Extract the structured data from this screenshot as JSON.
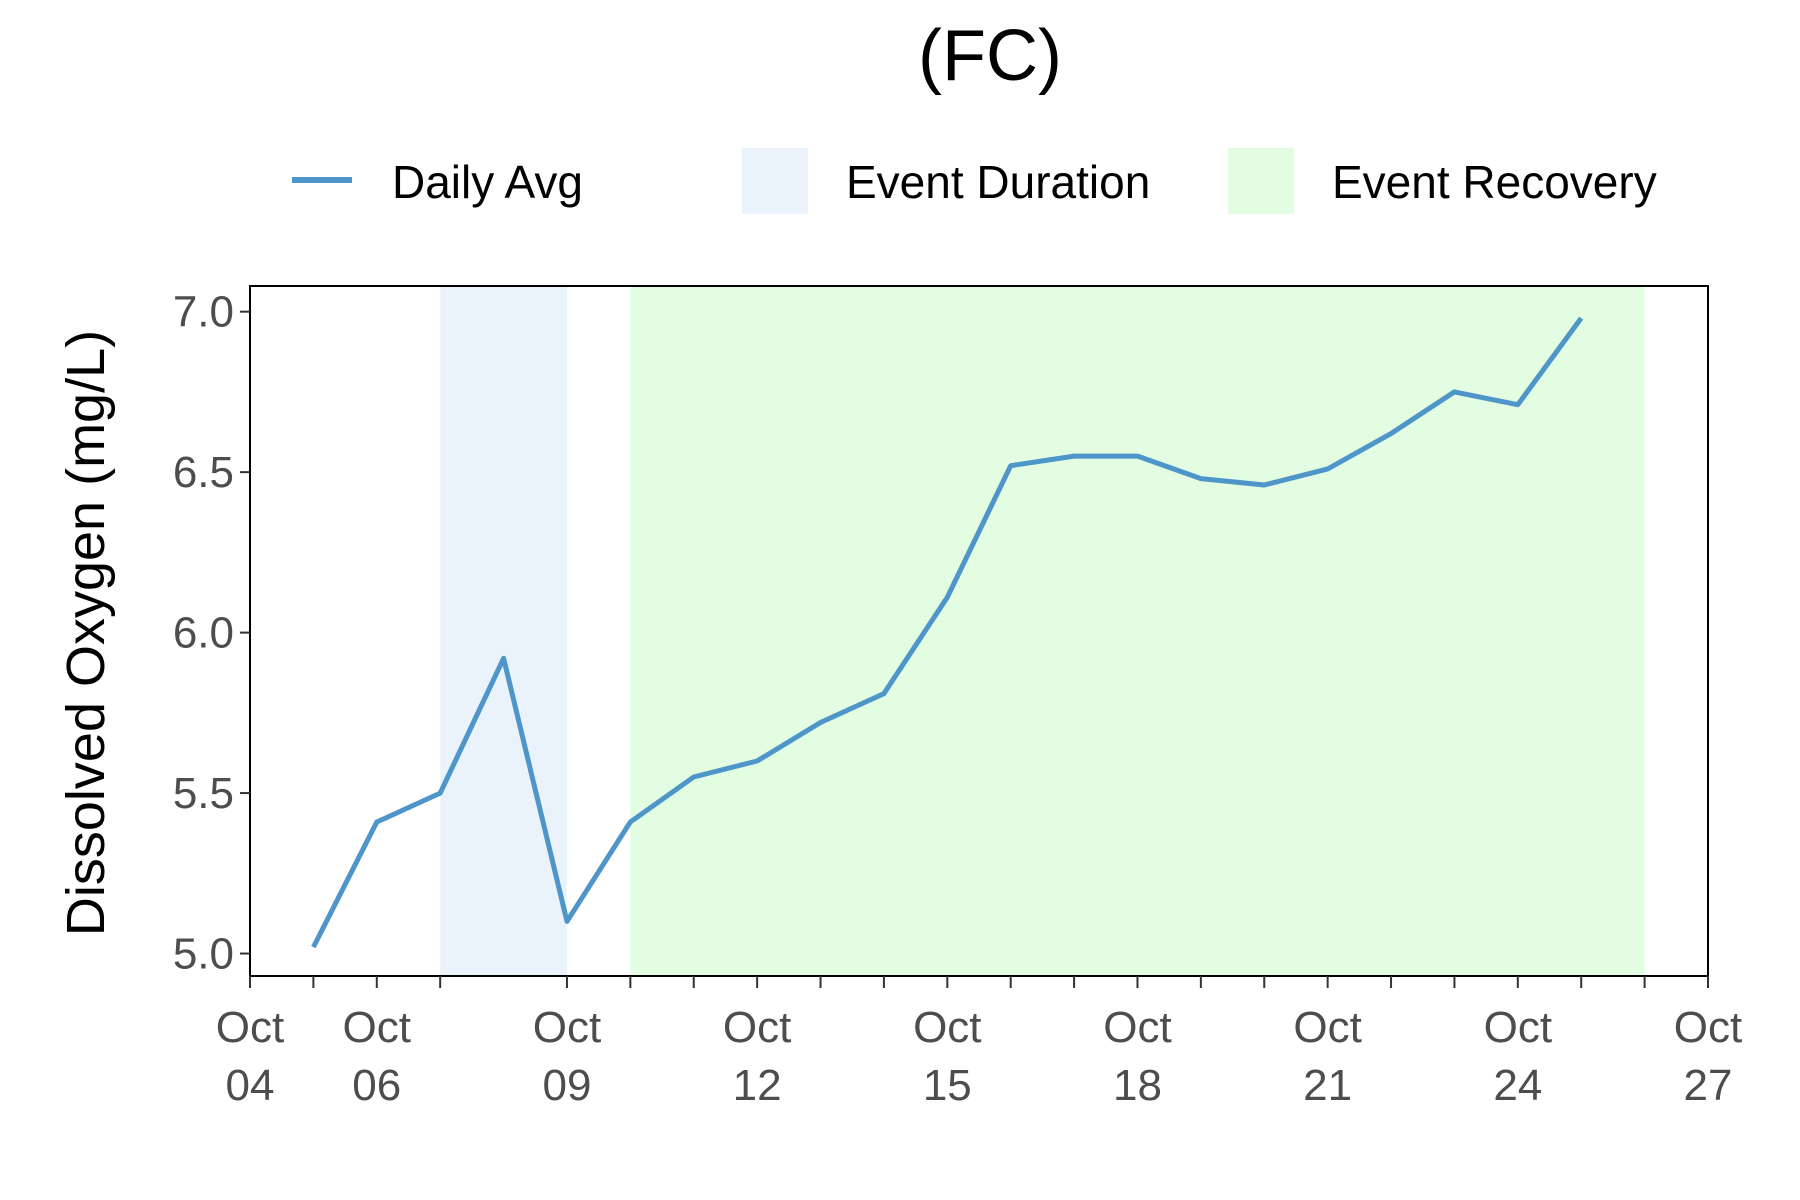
{
  "chart_data": {
    "type": "line",
    "title": "(FC)",
    "xlabel": "",
    "ylabel": "Dissolved Oxygen (mg/L)",
    "ylim": [
      4.93,
      7.08
    ],
    "yticks": [
      5.0,
      5.5,
      6.0,
      6.5,
      7.0
    ],
    "ytick_labels": [
      "5.0",
      "5.5",
      "6.0",
      "6.5",
      "7.0"
    ],
    "xlim": [
      "2023-10-04",
      "2023-10-27"
    ],
    "xticks": [
      {
        "date": "2023-10-04",
        "line1": "Oct",
        "line2": "04"
      },
      {
        "date": "2023-10-06",
        "line1": "Oct",
        "line2": "06"
      },
      {
        "date": "2023-10-09",
        "line1": "Oct",
        "line2": "09"
      },
      {
        "date": "2023-10-12",
        "line1": "Oct",
        "line2": "12"
      },
      {
        "date": "2023-10-15",
        "line1": "Oct",
        "line2": "15"
      },
      {
        "date": "2023-10-18",
        "line1": "Oct",
        "line2": "18"
      },
      {
        "date": "2023-10-21",
        "line1": "Oct",
        "line2": "21"
      },
      {
        "date": "2023-10-24",
        "line1": "Oct",
        "line2": "24"
      },
      {
        "date": "2023-10-27",
        "line1": "Oct",
        "line2": "27"
      }
    ],
    "minor_ticks": [
      "2023-10-05",
      "2023-10-07",
      "2023-10-10",
      "2023-10-11",
      "2023-10-13",
      "2023-10-14",
      "2023-10-16",
      "2023-10-17",
      "2023-10-19",
      "2023-10-20",
      "2023-10-22",
      "2023-10-23",
      "2023-10-25",
      "2023-10-26"
    ],
    "grid": false,
    "legend_position": "top",
    "series": [
      {
        "name": "Daily Avg",
        "color": "#4e95c9",
        "x": [
          "2023-10-05",
          "2023-10-06",
          "2023-10-07",
          "2023-10-08",
          "2023-10-09",
          "2023-10-10",
          "2023-10-11",
          "2023-10-12",
          "2023-10-13",
          "2023-10-14",
          "2023-10-15",
          "2023-10-16",
          "2023-10-17",
          "2023-10-18",
          "2023-10-19",
          "2023-10-20",
          "2023-10-21",
          "2023-10-22",
          "2023-10-23",
          "2023-10-24",
          "2023-10-25"
        ],
        "y": [
          5.02,
          5.41,
          5.5,
          5.92,
          5.1,
          5.41,
          5.55,
          5.6,
          5.72,
          5.81,
          6.11,
          6.52,
          6.55,
          6.55,
          6.48,
          6.46,
          6.51,
          6.62,
          6.75,
          6.71,
          6.98
        ]
      }
    ],
    "shaded_regions": [
      {
        "name": "Event Duration",
        "color": "#eaf3fc",
        "start": "2023-10-07",
        "end": "2023-10-09"
      },
      {
        "name": "Event Recovery",
        "color": "#e2fde2",
        "start": "2023-10-10",
        "end": "2023-10-26"
      }
    ]
  }
}
